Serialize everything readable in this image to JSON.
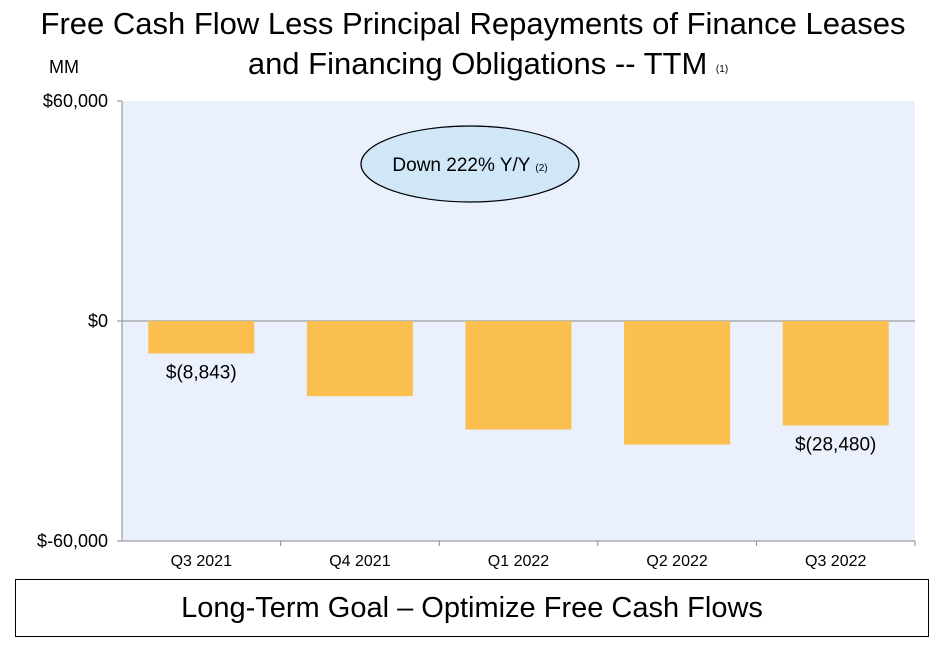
{
  "title": {
    "line1": "Free Cash Flow Less Principal Repayments of Finance Leases",
    "line2": "and Financing Obligations -- TTM",
    "footnote": "(1)"
  },
  "unit_label": "MM",
  "annotation": {
    "text": "Down 222% Y/Y",
    "footnote": "(2)"
  },
  "goal": "Long-Term Goal – Optimize Free Cash Flows",
  "colors": {
    "bar": "#FBBF4F",
    "plot_bg": "#EAF1FC",
    "bubble": "#CFE7F7"
  },
  "chart_data": {
    "type": "bar",
    "categories": [
      "Q3 2021",
      "Q4 2021",
      "Q1 2022",
      "Q2 2022",
      "Q3 2022"
    ],
    "values": [
      -8843,
      -20500,
      -29600,
      -33700,
      -28480
    ],
    "data_labels": [
      "$(8,843)",
      "",
      "",
      "",
      "$(28,480)"
    ],
    "ylim": [
      -60000,
      60000
    ],
    "y_ticks": [
      60000,
      0,
      -60000
    ],
    "y_tick_labels": [
      "$60,000",
      "$0",
      "$-60,000"
    ],
    "ylabel": "MM",
    "xlabel": ""
  }
}
